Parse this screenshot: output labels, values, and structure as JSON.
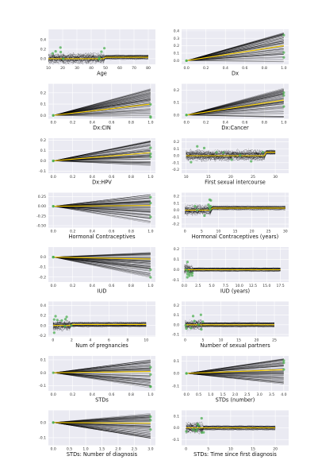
{
  "figure": {
    "background": "#ffffff",
    "panel_background": "#eaeaf2",
    "ice_line_color": "#000000",
    "pdp_line_color": "#ffd400",
    "point_color": "#4caf50"
  },
  "chart_data": [
    {
      "type": "line",
      "xlabel": "Age",
      "xticks": [
        "10",
        "20",
        "30",
        "40",
        "50",
        "60",
        "70",
        "80"
      ],
      "yticks": [
        "0.0",
        "0.2",
        "0.4"
      ],
      "xlim": [
        10,
        85
      ],
      "ylim": [
        -0.12,
        0.62
      ],
      "xtick_values": [
        10,
        20,
        30,
        40,
        50,
        60,
        70,
        80
      ],
      "ytick_values": [
        0,
        0.2,
        0.4
      ],
      "style": "wiggly",
      "change_point": 50,
      "trend": 0.03
    },
    {
      "type": "line",
      "xlabel": "Dx",
      "xticks": [
        "0.0",
        "0.2",
        "0.4",
        "0.6",
        "0.8",
        "1.0"
      ],
      "yticks": [
        "0.0",
        "0.1",
        "0.2",
        "0.3",
        "0.4"
      ],
      "xlim": [
        -0.05,
        1.05
      ],
      "ylim": [
        -0.05,
        0.42
      ],
      "xtick_values": [
        0,
        0.2,
        0.4,
        0.6,
        0.8,
        1.0
      ],
      "ytick_values": [
        0,
        0.1,
        0.2,
        0.3,
        0.4
      ],
      "style": "fan",
      "spread_low": -0.02,
      "spread_high": 0.38,
      "pdp_end": 0.2
    },
    {
      "type": "line",
      "xlabel": "Dx:CIN",
      "xticks": [
        "0.0",
        "0.2",
        "0.4",
        "0.6",
        "0.8",
        "1.0"
      ],
      "yticks": [
        "0.0",
        "0.1",
        "0.2"
      ],
      "xlim": [
        -0.05,
        1.05
      ],
      "ylim": [
        -0.03,
        0.28
      ],
      "xtick_values": [
        0,
        0.2,
        0.4,
        0.6,
        0.8,
        1.0
      ],
      "ytick_values": [
        0,
        0.1,
        0.2
      ],
      "style": "fan",
      "spread_low": -0.02,
      "spread_high": 0.24,
      "pdp_end": 0.1
    },
    {
      "type": "line",
      "xlabel": "Dx:Cancer",
      "xticks": [
        "0.0",
        "0.2",
        "0.4",
        "0.6",
        "0.8",
        "1.0"
      ],
      "yticks": [
        "0.0",
        "0.1",
        "0.2"
      ],
      "xlim": [
        -0.05,
        1.05
      ],
      "ylim": [
        -0.03,
        0.25
      ],
      "xtick_values": [
        0,
        0.2,
        0.4,
        0.6,
        0.8,
        1.0
      ],
      "ytick_values": [
        0,
        0.1,
        0.2
      ],
      "style": "fan",
      "spread_low": -0.02,
      "spread_high": 0.22,
      "pdp_end": 0.12
    },
    {
      "type": "line",
      "xlabel": "Dx:HPV",
      "xticks": [
        "0.0",
        "0.2",
        "0.4",
        "0.6",
        "0.8",
        "1.0"
      ],
      "yticks": [
        "-0.1",
        "0.0",
        "0.1",
        "0.2"
      ],
      "xlim": [
        -0.05,
        1.05
      ],
      "ylim": [
        -0.12,
        0.22
      ],
      "xtick_values": [
        0,
        0.2,
        0.4,
        0.6,
        0.8,
        1.0
      ],
      "ytick_values": [
        -0.1,
        0,
        0.1,
        0.2
      ],
      "style": "fan",
      "spread_low": -0.05,
      "spread_high": 0.2,
      "pdp_end": 0.08
    },
    {
      "type": "line",
      "xlabel": "First sexual intercourse",
      "xticks": [
        "10",
        "15",
        "20",
        "25",
        "30"
      ],
      "yticks": [
        "-0.2",
        "-0.1",
        "0.0",
        "0.1",
        "0.2"
      ],
      "xlim": [
        9,
        33
      ],
      "ylim": [
        -0.25,
        0.25
      ],
      "xtick_values": [
        10,
        15,
        20,
        25,
        30
      ],
      "ytick_values": [
        -0.2,
        -0.1,
        0,
        0.1,
        0.2
      ],
      "style": "wiggly",
      "change_point": 28,
      "trend": 0.05
    },
    {
      "type": "line",
      "xlabel": "Hormonal Contraceptives",
      "xticks": [
        "0.0",
        "0.2",
        "0.4",
        "0.6",
        "0.8",
        "1.0"
      ],
      "yticks": [
        "-0.50",
        "-0.25",
        "0.00",
        "0.25"
      ],
      "xlim": [
        -0.05,
        1.05
      ],
      "ylim": [
        -0.55,
        0.35
      ],
      "xtick_values": [
        0,
        0.2,
        0.4,
        0.6,
        0.8,
        1.0
      ],
      "ytick_values": [
        -0.5,
        -0.25,
        0,
        0.25
      ],
      "style": "fan",
      "spread_low": -0.45,
      "spread_high": 0.3,
      "pdp_end": 0.02
    },
    {
      "type": "line",
      "xlabel": "Hormonal Contraceptives (years)",
      "xticks": [
        "0",
        "5",
        "10",
        "15",
        "20",
        "25",
        "30"
      ],
      "yticks": [
        "-0.2",
        "-0.1",
        "0.0",
        "0.1",
        "0.2"
      ],
      "xlim": [
        -1,
        31
      ],
      "ylim": [
        -0.25,
        0.25
      ],
      "xtick_values": [
        0,
        5,
        10,
        15,
        20,
        25,
        30
      ],
      "ytick_values": [
        -0.2,
        -0.1,
        0,
        0.1,
        0.2
      ],
      "style": "wiggly",
      "change_point": 8,
      "trend": 0.03
    },
    {
      "type": "line",
      "xlabel": "IUD",
      "xticks": [
        "0.0",
        "0.2",
        "0.4",
        "0.6",
        "0.8",
        "1.0"
      ],
      "yticks": [
        "-0.2",
        "-0.1",
        "0.0"
      ],
      "xlim": [
        -0.05,
        1.05
      ],
      "ylim": [
        -0.25,
        0.1
      ],
      "xtick_values": [
        0,
        0.2,
        0.4,
        0.6,
        0.8,
        1.0
      ],
      "ytick_values": [
        -0.2,
        -0.1,
        0
      ],
      "style": "fan",
      "spread_low": -0.22,
      "spread_high": 0.05,
      "pdp_end": -0.02
    },
    {
      "type": "line",
      "xlabel": "IUD (years)",
      "xticks": [
        "0.0",
        "2.5",
        "5.0",
        "7.5",
        "10.0",
        "12.5",
        "15.0",
        "17.5"
      ],
      "yticks": [
        "-0.1",
        "0.0",
        "0.1",
        "0.2"
      ],
      "xlim": [
        -0.5,
        19
      ],
      "ylim": [
        -0.12,
        0.22
      ],
      "xtick_values": [
        0,
        2.5,
        5,
        7.5,
        10,
        12.5,
        15,
        17.5
      ],
      "ytick_values": [
        -0.1,
        0,
        0.1,
        0.2
      ],
      "style": "wiggly",
      "change_point": 1.5,
      "trend": 0.0
    },
    {
      "type": "line",
      "xlabel": "Num of pregnancies",
      "xticks": [
        "0",
        "2",
        "4",
        "6",
        "8",
        "10"
      ],
      "yticks": [
        "-0.2",
        "0.0",
        "0.2",
        "0.4"
      ],
      "xlim": [
        -0.5,
        11
      ],
      "ylim": [
        -0.22,
        0.48
      ],
      "xtick_values": [
        0,
        2,
        4,
        6,
        8,
        10
      ],
      "ytick_values": [
        -0.2,
        0,
        0.2,
        0.4
      ],
      "style": "wiggly",
      "change_point": 2,
      "trend": 0.02
    },
    {
      "type": "line",
      "xlabel": "Number of sexual partners",
      "xticks": [
        "0",
        "5",
        "10",
        "15",
        "20",
        "25"
      ],
      "yticks": [
        "-0.1",
        "0.0",
        "0.1",
        "0.2"
      ],
      "xlim": [
        -1,
        29
      ],
      "ylim": [
        -0.12,
        0.24
      ],
      "xtick_values": [
        0,
        5,
        10,
        15,
        20,
        25
      ],
      "ytick_values": [
        -0.1,
        0,
        0.1,
        0.2
      ],
      "style": "wiggly",
      "change_point": 5,
      "trend": 0.0
    },
    {
      "type": "line",
      "xlabel": "STDs",
      "xticks": [
        "0.0",
        "0.2",
        "0.4",
        "0.6",
        "0.8",
        "1.0"
      ],
      "yticks": [
        "-0.1",
        "0.0",
        "0.1"
      ],
      "xlim": [
        -0.05,
        1.05
      ],
      "ylim": [
        -0.14,
        0.13
      ],
      "xtick_values": [
        0,
        0.2,
        0.4,
        0.6,
        0.8,
        1.0
      ],
      "ytick_values": [
        -0.1,
        0,
        0.1
      ],
      "style": "fan",
      "spread_low": -0.12,
      "spread_high": 0.1,
      "pdp_end": 0.01
    },
    {
      "type": "line",
      "xlabel": "STDs (number)",
      "xticks": [
        "0.0",
        "0.5",
        "1.0",
        "1.5",
        "2.0",
        "2.5",
        "3.0",
        "3.5",
        "4.0"
      ],
      "yticks": [
        "-0.1",
        "0.0",
        "0.1"
      ],
      "xlim": [
        -0.2,
        4.2
      ],
      "ylim": [
        -0.14,
        0.14
      ],
      "xtick_values": [
        0,
        0.5,
        1,
        1.5,
        2,
        2.5,
        3,
        3.5,
        4
      ],
      "ytick_values": [
        -0.1,
        0,
        0.1
      ],
      "style": "fan",
      "spread_low": -0.1,
      "spread_high": 0.12,
      "pdp_end": 0.03
    },
    {
      "type": "line",
      "xlabel": "STDs: Number of diagnosis",
      "xticks": [
        "0.0",
        "0.5",
        "1.0",
        "1.5",
        "2.0",
        "2.5",
        "3.0"
      ],
      "yticks": [
        "-0.1",
        "0.0"
      ],
      "xlim": [
        -0.15,
        3.15
      ],
      "ylim": [
        -0.15,
        0.08
      ],
      "xtick_values": [
        0,
        0.5,
        1,
        1.5,
        2,
        2.5,
        3
      ],
      "ytick_values": [
        -0.1,
        0
      ],
      "style": "fan",
      "spread_low": -0.12,
      "spread_high": 0.06,
      "pdp_end": -0.005
    },
    {
      "type": "line",
      "xlabel": "STDs: Time since first diagnosis",
      "xticks": [
        "0",
        "5",
        "10",
        "15",
        "20"
      ],
      "yticks": [
        "-0.1",
        "0.0",
        "0.1"
      ],
      "xlim": [
        -1,
        23
      ],
      "ylim": [
        -0.15,
        0.15
      ],
      "xtick_values": [
        0,
        5,
        10,
        15,
        20
      ],
      "ytick_values": [
        -0.1,
        0,
        0.1
      ],
      "style": "wiggly",
      "change_point": 4,
      "trend": 0.0
    }
  ]
}
